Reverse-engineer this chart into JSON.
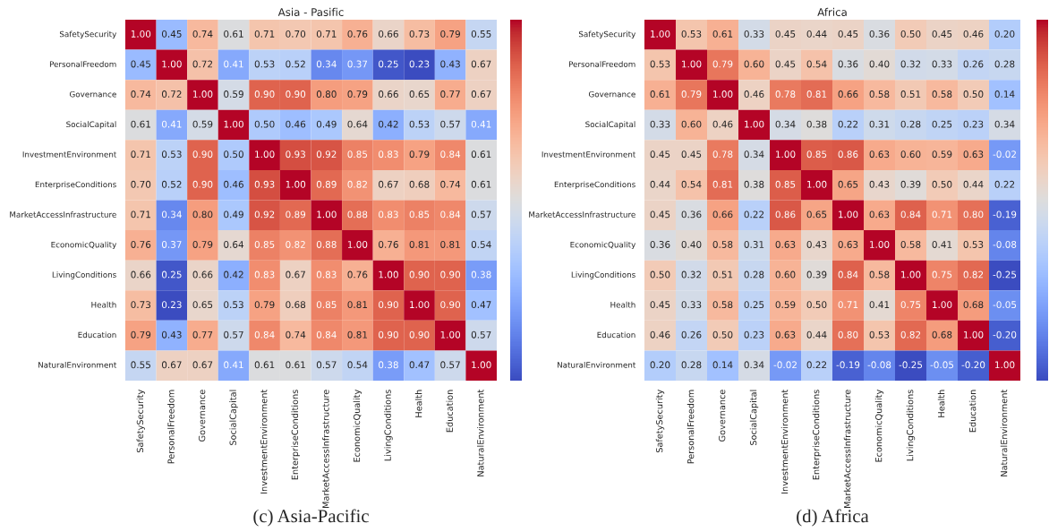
{
  "chart_data": [
    {
      "type": "heatmap",
      "title": "Asia - Pasific",
      "annotations": [
        "(c) Asia-Pacific"
      ],
      "data_labels": true,
      "categories": [
        "SafetySecurity",
        "PersonalFreedom",
        "Governance",
        "SocialCapital",
        "InvestmentEnvironment",
        "EnterpriseConditions",
        "MarketAccessInfrastructure",
        "EconomicQuality",
        "LivingConditions",
        "Health",
        "Education",
        "NaturalEnvironment"
      ],
      "y_categories": [
        "SafetySecurity",
        "PersonalFreedom",
        "Governance",
        "SocialCapital",
        "InvestmentEnvironment",
        "EnterpriseConditions",
        "MarketAccessInfrastructure",
        "EconomicQuality",
        "LivingConditions",
        "Health",
        "Education",
        "NaturalEnvironment"
      ],
      "cells": [
        [
          1.0,
          0.45,
          0.74,
          0.61,
          0.71,
          0.7,
          0.71,
          0.76,
          0.66,
          0.73,
          0.79,
          0.55
        ],
        [
          0.45,
          1.0,
          0.72,
          0.41,
          0.53,
          0.52,
          0.34,
          0.37,
          0.25,
          0.23,
          0.43,
          0.67
        ],
        [
          0.74,
          0.72,
          1.0,
          0.59,
          0.9,
          0.9,
          0.8,
          0.79,
          0.66,
          0.65,
          0.77,
          0.67
        ],
        [
          0.61,
          0.41,
          0.59,
          1.0,
          0.5,
          0.46,
          0.49,
          0.64,
          0.42,
          0.53,
          0.57,
          0.41
        ],
        [
          0.71,
          0.53,
          0.9,
          0.5,
          1.0,
          0.93,
          0.92,
          0.85,
          0.83,
          0.79,
          0.84,
          0.61
        ],
        [
          0.7,
          0.52,
          0.9,
          0.46,
          0.93,
          1.0,
          0.89,
          0.82,
          0.67,
          0.68,
          0.74,
          0.61
        ],
        [
          0.71,
          0.34,
          0.8,
          0.49,
          0.92,
          0.89,
          1.0,
          0.88,
          0.83,
          0.85,
          0.84,
          0.57
        ],
        [
          0.76,
          0.37,
          0.79,
          0.64,
          0.85,
          0.82,
          0.88,
          1.0,
          0.76,
          0.81,
          0.81,
          0.54
        ],
        [
          0.66,
          0.25,
          0.66,
          0.42,
          0.83,
          0.67,
          0.83,
          0.76,
          1.0,
          0.9,
          0.9,
          0.38
        ],
        [
          0.73,
          0.23,
          0.65,
          0.53,
          0.79,
          0.68,
          0.85,
          0.81,
          0.9,
          1.0,
          0.9,
          0.47
        ],
        [
          0.79,
          0.43,
          0.77,
          0.57,
          0.84,
          0.74,
          0.84,
          0.81,
          0.9,
          0.9,
          1.0,
          0.57
        ],
        [
          0.55,
          0.67,
          0.67,
          0.41,
          0.61,
          0.61,
          0.57,
          0.54,
          0.38,
          0.47,
          0.57,
          1.0
        ]
      ],
      "cell_labels": [
        [
          "1.00",
          "0.45",
          "0.74",
          "0.61",
          "0.71",
          "0.70",
          "0.71",
          "0.76",
          "0.66",
          "0.73",
          "0.79",
          "0.55"
        ],
        [
          "0.45",
          "1.00",
          "0.72",
          "0.41",
          "0.53",
          "0.52",
          "0.34",
          "0.37",
          "0.25",
          "0.23",
          "0.43",
          "0.67"
        ],
        [
          "0.74",
          "0.72",
          "1.00",
          "0.59",
          "0.90",
          "0.90",
          "0.80",
          "0.79",
          "0.66",
          "0.65",
          "0.77",
          "0.67"
        ],
        [
          "0.61",
          "0.41",
          "0.59",
          "1.00",
          "0.50",
          "0.46",
          "0.49",
          "0.64",
          "0.42",
          "0.53",
          "0.57",
          "0.41"
        ],
        [
          "0.71",
          "0.53",
          "0.90",
          "0.50",
          "1.00",
          "0.93",
          "0.92",
          "0.85",
          "0.83",
          "0.79",
          "0.84",
          "0.61"
        ],
        [
          "0.70",
          "0.52",
          "0.90",
          "0.46",
          "0.93",
          "1.00",
          "0.89",
          "0.82",
          "0.67",
          "0.68",
          "0.74",
          "0.61"
        ],
        [
          "0.71",
          "0.34",
          "0.80",
          "0.49",
          "0.92",
          "0.89",
          "1.00",
          "0.88",
          "0.83",
          "0.85",
          "0.84",
          "0.57"
        ],
        [
          "0.76",
          "0.37",
          "0.79",
          "0.64",
          "0.85",
          "0.82",
          "0.88",
          "1.00",
          "0.76",
          "0.81",
          "0.81",
          "0.54"
        ],
        [
          "0.66",
          "0.25",
          "0.66",
          "0.42",
          "0.83",
          "0.67",
          "0.83",
          "0.76",
          "1.00",
          "0.90",
          "0.90",
          "0.38"
        ],
        [
          "0.73",
          "0.23",
          "0.65",
          "0.53",
          "0.79",
          "0.68",
          "0.85",
          "0.81",
          "0.90",
          "1.00",
          "0.90",
          "0.47"
        ],
        [
          "0.79",
          "0.43",
          "0.77",
          "0.57",
          "0.84",
          "0.74",
          "0.84",
          "0.81",
          "0.90",
          "0.90",
          "1.00",
          "0.57"
        ],
        [
          "0.55",
          "0.67",
          "0.67",
          "0.41",
          "0.61",
          "0.61",
          "0.57",
          "0.54",
          "0.38",
          "0.47",
          "0.57",
          "1.00"
        ]
      ]
    },
    {
      "type": "heatmap",
      "title": "Africa",
      "annotations": [
        "(d) Africa"
      ],
      "data_labels": true,
      "categories": [
        "SafetySecurity",
        "PersonalFreedom",
        "Governance",
        "SocialCapital",
        "InvestmentEnvironment",
        "EnterpriseConditions",
        "MarketAccessInfrastructure",
        "EconomicQuality",
        "LivingConditions",
        "Health",
        "Education",
        "NaturalEnvironment"
      ],
      "y_categories": [
        "SafetySecurity",
        "PersonalFreedom",
        "Governance",
        "SocialCapital",
        "InvestmentEnvironment",
        "EnterpriseConditions",
        "MarketAccessInfrastructure",
        "EconomicQuality",
        "LivingConditions",
        "Health",
        "Education",
        "NaturalEnvironment"
      ],
      "cells": [
        [
          1.0,
          0.53,
          0.61,
          0.33,
          0.45,
          0.44,
          0.45,
          0.36,
          0.5,
          0.45,
          0.46,
          0.2
        ],
        [
          0.53,
          1.0,
          0.79,
          0.6,
          0.45,
          0.54,
          0.36,
          0.4,
          0.32,
          0.33,
          0.26,
          0.28
        ],
        [
          0.61,
          0.79,
          1.0,
          0.46,
          0.78,
          0.81,
          0.66,
          0.58,
          0.51,
          0.58,
          0.5,
          0.14
        ],
        [
          0.33,
          0.6,
          0.46,
          1.0,
          0.34,
          0.38,
          0.22,
          0.31,
          0.28,
          0.25,
          0.23,
          0.34
        ],
        [
          0.45,
          0.45,
          0.78,
          0.34,
          1.0,
          0.85,
          0.86,
          0.63,
          0.6,
          0.59,
          0.63,
          -0.02
        ],
        [
          0.44,
          0.54,
          0.81,
          0.38,
          0.85,
          1.0,
          0.65,
          0.43,
          0.39,
          0.5,
          0.44,
          0.22
        ],
        [
          0.45,
          0.36,
          0.66,
          0.22,
          0.86,
          0.65,
          1.0,
          0.63,
          0.84,
          0.71,
          0.8,
          -0.19
        ],
        [
          0.36,
          0.4,
          0.58,
          0.31,
          0.63,
          0.43,
          0.63,
          1.0,
          0.58,
          0.41,
          0.53,
          -0.08
        ],
        [
          0.5,
          0.32,
          0.51,
          0.28,
          0.6,
          0.39,
          0.84,
          0.58,
          1.0,
          0.75,
          0.82,
          -0.25
        ],
        [
          0.45,
          0.33,
          0.58,
          0.25,
          0.59,
          0.5,
          0.71,
          0.41,
          0.75,
          1.0,
          0.68,
          -0.05
        ],
        [
          0.46,
          0.26,
          0.5,
          0.23,
          0.63,
          0.44,
          0.8,
          0.53,
          0.82,
          0.68,
          1.0,
          -0.2
        ],
        [
          0.2,
          0.28,
          0.14,
          0.34,
          -0.02,
          0.22,
          -0.19,
          -0.08,
          -0.25,
          -0.05,
          -0.2,
          1.0
        ]
      ],
      "cell_labels": [
        [
          "1.00",
          "0.53",
          "0.61",
          "0.33",
          "0.45",
          "0.44",
          "0.45",
          "0.36",
          "0.50",
          "0.45",
          "0.46",
          "0.20"
        ],
        [
          "0.53",
          "1.00",
          "0.79",
          "0.60",
          "0.45",
          "0.54",
          "0.36",
          "0.40",
          "0.32",
          "0.33",
          "0.26",
          "0.28"
        ],
        [
          "0.61",
          "0.79",
          "1.00",
          "0.46",
          "0.78",
          "0.81",
          "0.66",
          "0.58",
          "0.51",
          "0.58",
          "0.50",
          "0.14"
        ],
        [
          "0.33",
          "0.60",
          "0.46",
          "1.00",
          "0.34",
          "0.38",
          "0.22",
          "0.31",
          "0.28",
          "0.25",
          "0.23",
          "0.34"
        ],
        [
          "0.45",
          "0.45",
          "0.78",
          "0.34",
          "1.00",
          "0.85",
          "0.86",
          "0.63",
          "0.60",
          "0.59",
          "0.63",
          "-0.02"
        ],
        [
          "0.44",
          "0.54",
          "0.81",
          "0.38",
          "0.85",
          "1.00",
          "0.65",
          "0.43",
          "0.39",
          "0.50",
          "0.44",
          "0.22"
        ],
        [
          "0.45",
          "0.36",
          "0.66",
          "0.22",
          "0.86",
          "0.65",
          "1.00",
          "0.63",
          "0.84",
          "0.71",
          "0.80",
          "-0.19"
        ],
        [
          "0.36",
          "0.40",
          "0.58",
          "0.31",
          "0.63",
          "0.43",
          "0.63",
          "1.00",
          "0.58",
          "0.41",
          "0.53",
          "-0.08"
        ],
        [
          "0.50",
          "0.32",
          "0.51",
          "0.28",
          "0.60",
          "0.39",
          "0.84",
          "0.58",
          "1.00",
          "0.75",
          "0.82",
          "-0.25"
        ],
        [
          "0.45",
          "0.33",
          "0.58",
          "0.25",
          "0.59",
          "0.50",
          "0.71",
          "0.41",
          "0.75",
          "1.00",
          "0.68",
          "-0.05"
        ],
        [
          "0.46",
          "0.26",
          "0.50",
          "0.23",
          "0.63",
          "0.44",
          "0.80",
          "0.53",
          "0.82",
          "0.68",
          "1.00",
          "-0.20"
        ],
        [
          "0.20",
          "0.28",
          "0.14",
          "0.34",
          "-0.02",
          "0.22",
          "-0.19",
          "-0.08",
          "-0.25",
          "-0.05",
          "-0.20",
          "1.00"
        ]
      ]
    }
  ]
}
